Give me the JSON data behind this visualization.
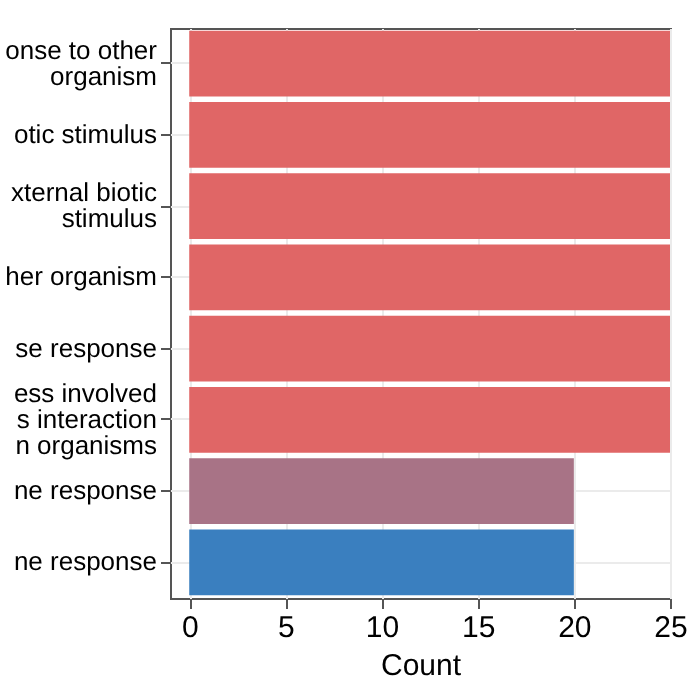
{
  "chart_data": {
    "type": "bar",
    "orientation": "horizontal",
    "xlabel": "Count",
    "categories": [
      "onse to other\norganism",
      "otic stimulus",
      "xternal biotic\nstimulus",
      "her organism",
      "se response",
      "ess involved\ns interaction\nn organisms",
      "ne response",
      "ne response"
    ],
    "values": [
      25,
      25,
      25,
      25,
      25,
      25,
      20,
      20
    ],
    "colors": [
      "#e06666",
      "#e06666",
      "#e06666",
      "#e06666",
      "#e06666",
      "#e06666",
      "#a87386",
      "#3a7fbf"
    ],
    "xlim": [
      -1,
      25
    ],
    "xticks": [
      0,
      5,
      10,
      15,
      20,
      25
    ],
    "grid": true
  }
}
